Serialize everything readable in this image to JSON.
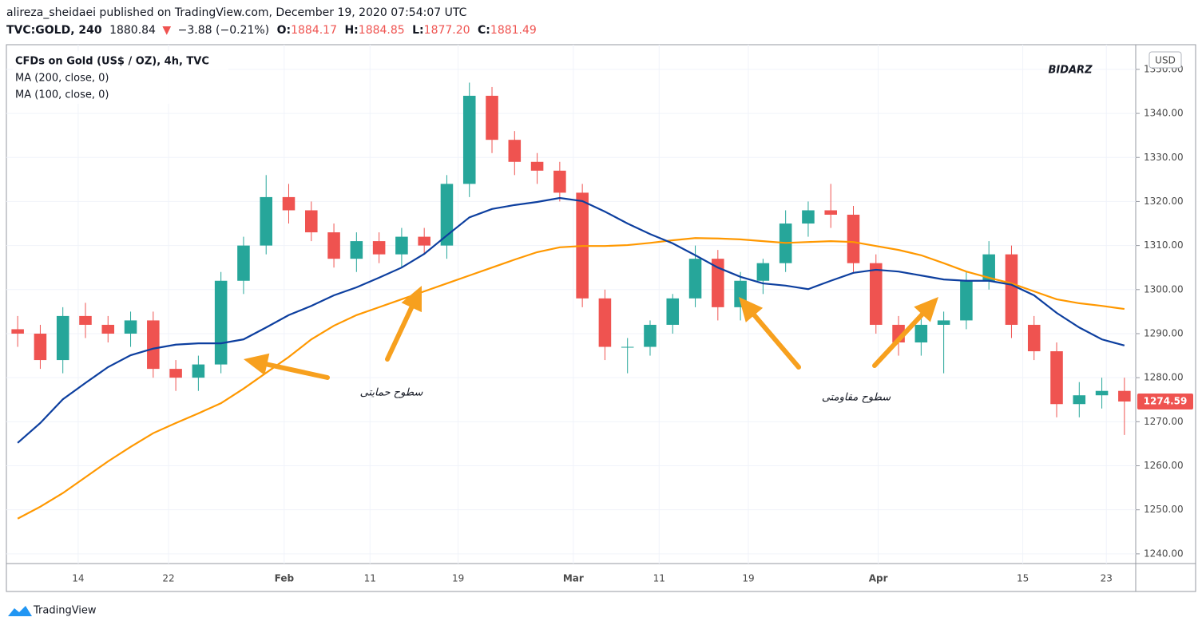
{
  "header": {
    "publisher": "alireza_sheidaei published on TradingView.com, December 19, 2020 07:54:07 UTC",
    "symbol": "TVC:GOLD, 240",
    "last": "1880.84",
    "arrow": "▼",
    "change": "−3.88 (−0.21%)",
    "o_label": "O:",
    "open": "1884.17",
    "h_label": "H:",
    "high": "1884.85",
    "l_label": "L:",
    "low": "1877.20",
    "c_label": "C:",
    "close": "1881.49"
  },
  "chart_data": {
    "type": "candlestick",
    "title": "CFDs on Gold (US$ / OZ), 4h, TVC",
    "currency": "USD",
    "up_color": "#26a69a",
    "down_color": "#ef5350",
    "candles": {
      "open": [
        1291,
        1290,
        1284,
        1294,
        1292,
        1290,
        1293,
        1282,
        1280,
        1283,
        1302,
        1310,
        1321,
        1318,
        1313,
        1307,
        1311,
        1308,
        1312,
        1310,
        1324,
        1344,
        1334,
        1329,
        1327,
        1322,
        1298,
        1287,
        1287,
        1292,
        1298,
        1307,
        1296,
        1302,
        1306,
        1315,
        1318,
        1317,
        1306,
        1292,
        1288,
        1292,
        1293,
        1302,
        1308,
        1292,
        1286,
        1274,
        1276,
        1277
      ],
      "high": [
        1294,
        1292,
        1296,
        1297,
        1294,
        1295,
        1295,
        1284,
        1285,
        1304,
        1312,
        1326,
        1324,
        1320,
        1315,
        1313,
        1313,
        1314,
        1314,
        1326,
        1347,
        1346,
        1336,
        1331,
        1329,
        1324,
        1300,
        1289,
        1293,
        1299,
        1310,
        1309,
        1304,
        1307,
        1318,
        1320,
        1324,
        1319,
        1308,
        1294,
        1294,
        1295,
        1304,
        1311,
        1310,
        1294,
        1288,
        1279,
        1280,
        1280
      ],
      "low": [
        1287,
        1282,
        1281,
        1289,
        1288,
        1287,
        1280,
        1277,
        1277,
        1281,
        1299,
        1308,
        1315,
        1311,
        1305,
        1304,
        1306,
        1305,
        1308,
        1307,
        1321,
        1331,
        1326,
        1324,
        1320,
        1296,
        1284,
        1281,
        1285,
        1290,
        1296,
        1293,
        1293,
        1299,
        1304,
        1312,
        1314,
        1304,
        1290,
        1285,
        1285,
        1281,
        1291,
        1300,
        1289,
        1284,
        1271,
        1271,
        1273,
        1267
      ],
      "close": [
        1290,
        1284,
        1294,
        1292,
        1290,
        1293,
        1282,
        1280,
        1283,
        1302,
        1310,
        1321,
        1318,
        1313,
        1307,
        1311,
        1308,
        1312,
        1310,
        1324,
        1344,
        1334,
        1329,
        1327,
        1322,
        1298,
        1287,
        1287,
        1292,
        1298,
        1307,
        1296,
        1302,
        1306,
        1315,
        1318,
        1317,
        1306,
        1292,
        1288,
        1292,
        1293,
        1302,
        1308,
        1292,
        1286,
        1274,
        1276,
        1277,
        1274.59
      ]
    },
    "series": [
      {
        "name": "MA (200, close, 0)",
        "color": "#ff9800",
        "values": [
          1248,
          1250.7,
          1253.8,
          1257.4,
          1261,
          1264.3,
          1267.4,
          1269.7,
          1271.9,
          1274.2,
          1277.5,
          1281.1,
          1284.7,
          1288.7,
          1291.8,
          1294.2,
          1296,
          1297.8,
          1299.6,
          1301.4,
          1303.2,
          1305,
          1306.8,
          1308.5,
          1309.6,
          1309.9,
          1309.9,
          1310.1,
          1310.6,
          1311.2,
          1311.7,
          1311.6,
          1311.4,
          1311,
          1310.6,
          1310.8,
          1311,
          1310.8,
          1309.9,
          1309,
          1307.8,
          1306,
          1304.1,
          1302.7,
          1301.4,
          1299.6,
          1297.8,
          1296.9,
          1296.3,
          1295.6
        ]
      },
      {
        "name": "MA (100, close, 0)",
        "color": "#0d3f9f",
        "values": [
          1265.2,
          1269.7,
          1275.1,
          1278.8,
          1282.4,
          1285.1,
          1286.6,
          1287.5,
          1287.8,
          1287.8,
          1288.7,
          1291.4,
          1294.2,
          1296.3,
          1298.7,
          1300.5,
          1302.7,
          1305,
          1308.1,
          1312.3,
          1316.4,
          1318.3,
          1319.2,
          1319.9,
          1320.8,
          1320.1,
          1317.7,
          1315,
          1312.6,
          1310.5,
          1307.8,
          1305,
          1302.9,
          1301.4,
          1300.9,
          1300.1,
          1302,
          1303.8,
          1304.5,
          1304.1,
          1303.2,
          1302.3,
          1302,
          1302,
          1301.1,
          1298.7,
          1294.7,
          1291.4,
          1288.7,
          1287.3
        ]
      }
    ],
    "xlim": [
      -0.5,
      49.5
    ],
    "xticks": [
      {
        "value": 2.68,
        "label": "14"
      },
      {
        "value": 6.68,
        "label": "22"
      },
      {
        "value": 11.8,
        "label": "Feb"
      },
      {
        "value": 15.6,
        "label": "11"
      },
      {
        "value": 19.5,
        "label": "19"
      },
      {
        "value": 24.6,
        "label": "Mar"
      },
      {
        "value": 28.4,
        "label": "11"
      },
      {
        "value": 32.35,
        "label": "19"
      },
      {
        "value": 38.1,
        "label": "Apr"
      },
      {
        "value": 44.5,
        "label": "15"
      },
      {
        "value": 48.2,
        "label": "23"
      }
    ],
    "ylim": [
      1237.8,
      1355.6
    ],
    "yticks": [
      {
        "value": 1240,
        "label": "1240.00"
      },
      {
        "value": 1250,
        "label": "1250.00"
      },
      {
        "value": 1260,
        "label": "1260.00"
      },
      {
        "value": 1270,
        "label": "1270.00"
      },
      {
        "value": 1280,
        "label": "1280.00"
      },
      {
        "value": 1290,
        "label": "1290.00"
      },
      {
        "value": 1300,
        "label": "1300.00"
      },
      {
        "value": 1310,
        "label": "1310.00"
      },
      {
        "value": 1320,
        "label": "1320.00"
      },
      {
        "value": 1330,
        "label": "1330.00"
      },
      {
        "value": 1340,
        "label": "1340.00"
      },
      {
        "value": 1350,
        "label": "1350.00"
      }
    ],
    "grid": true,
    "annotations": [
      "سطوح حمایتی",
      "سطوح مقاومتی"
    ]
  },
  "logo": {
    "left": "BID",
    "right": "ARZ"
  },
  "footer": "TradingView"
}
